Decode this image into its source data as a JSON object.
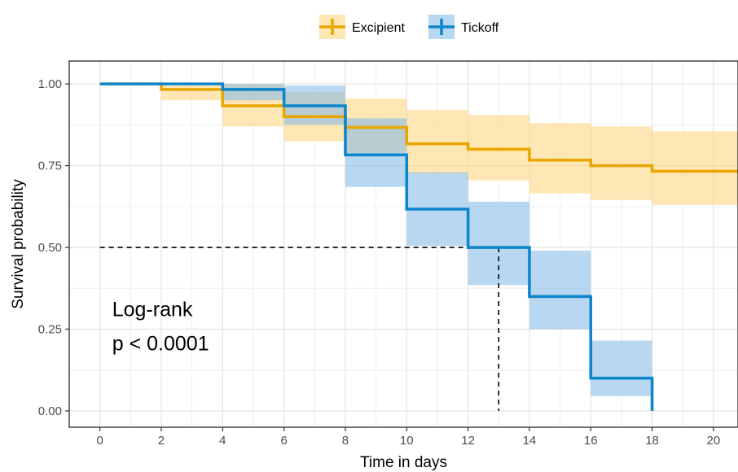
{
  "chart_data": {
    "type": "line",
    "step": true,
    "xlabel": "Time in days",
    "ylabel": "Survival probability",
    "xlim": [
      -1,
      20.8
    ],
    "ylim": [
      -0.05,
      1.07
    ],
    "x_ticks": [
      0,
      2,
      4,
      6,
      8,
      10,
      12,
      14,
      16,
      18,
      20
    ],
    "y_ticks": [
      0.0,
      0.25,
      0.5,
      0.75,
      1.0
    ],
    "x_tick_labels": [
      "0",
      "2",
      "4",
      "6",
      "8",
      "10",
      "12",
      "14",
      "16",
      "18",
      "20"
    ],
    "y_tick_labels": [
      "0.00",
      "0.25",
      "0.50",
      "0.75",
      "1.00"
    ],
    "grid": true,
    "legend_position": "top",
    "series": [
      {
        "name": "Excipient",
        "color": "#E7A700",
        "fill": "#FFD479",
        "times": [
          0,
          2,
          4,
          6,
          8,
          10,
          12,
          14,
          16,
          18,
          20.8
        ],
        "surv": [
          1.0,
          0.983,
          0.933,
          0.9,
          0.867,
          0.817,
          0.8,
          0.767,
          0.75,
          0.733,
          0.733
        ],
        "lower": [
          1.0,
          0.95,
          0.87,
          0.825,
          0.79,
          0.725,
          0.705,
          0.665,
          0.645,
          0.63,
          0.63
        ],
        "upper": [
          1.0,
          1.0,
          1.0,
          0.975,
          0.955,
          0.92,
          0.905,
          0.88,
          0.87,
          0.855,
          0.855
        ]
      },
      {
        "name": "Tickoff",
        "color": "#0F86CB",
        "fill": "#7EB8E8",
        "times": [
          0,
          4,
          6,
          8,
          10,
          12,
          14,
          16,
          18
        ],
        "surv": [
          1.0,
          0.983,
          0.933,
          0.783,
          0.617,
          0.5,
          0.35,
          0.1,
          0.0
        ],
        "lower": [
          1.0,
          0.95,
          0.875,
          0.685,
          0.505,
          0.385,
          0.25,
          0.045,
          0.0
        ],
        "upper": [
          1.0,
          1.0,
          0.995,
          0.895,
          0.73,
          0.64,
          0.49,
          0.215,
          0.0
        ]
      }
    ],
    "median_line": {
      "y": 0.5,
      "x": 13
    },
    "annotation": {
      "line1": "Log-rank",
      "line2": "p < 0.0001",
      "x": 0.4,
      "y": 0.29
    }
  }
}
